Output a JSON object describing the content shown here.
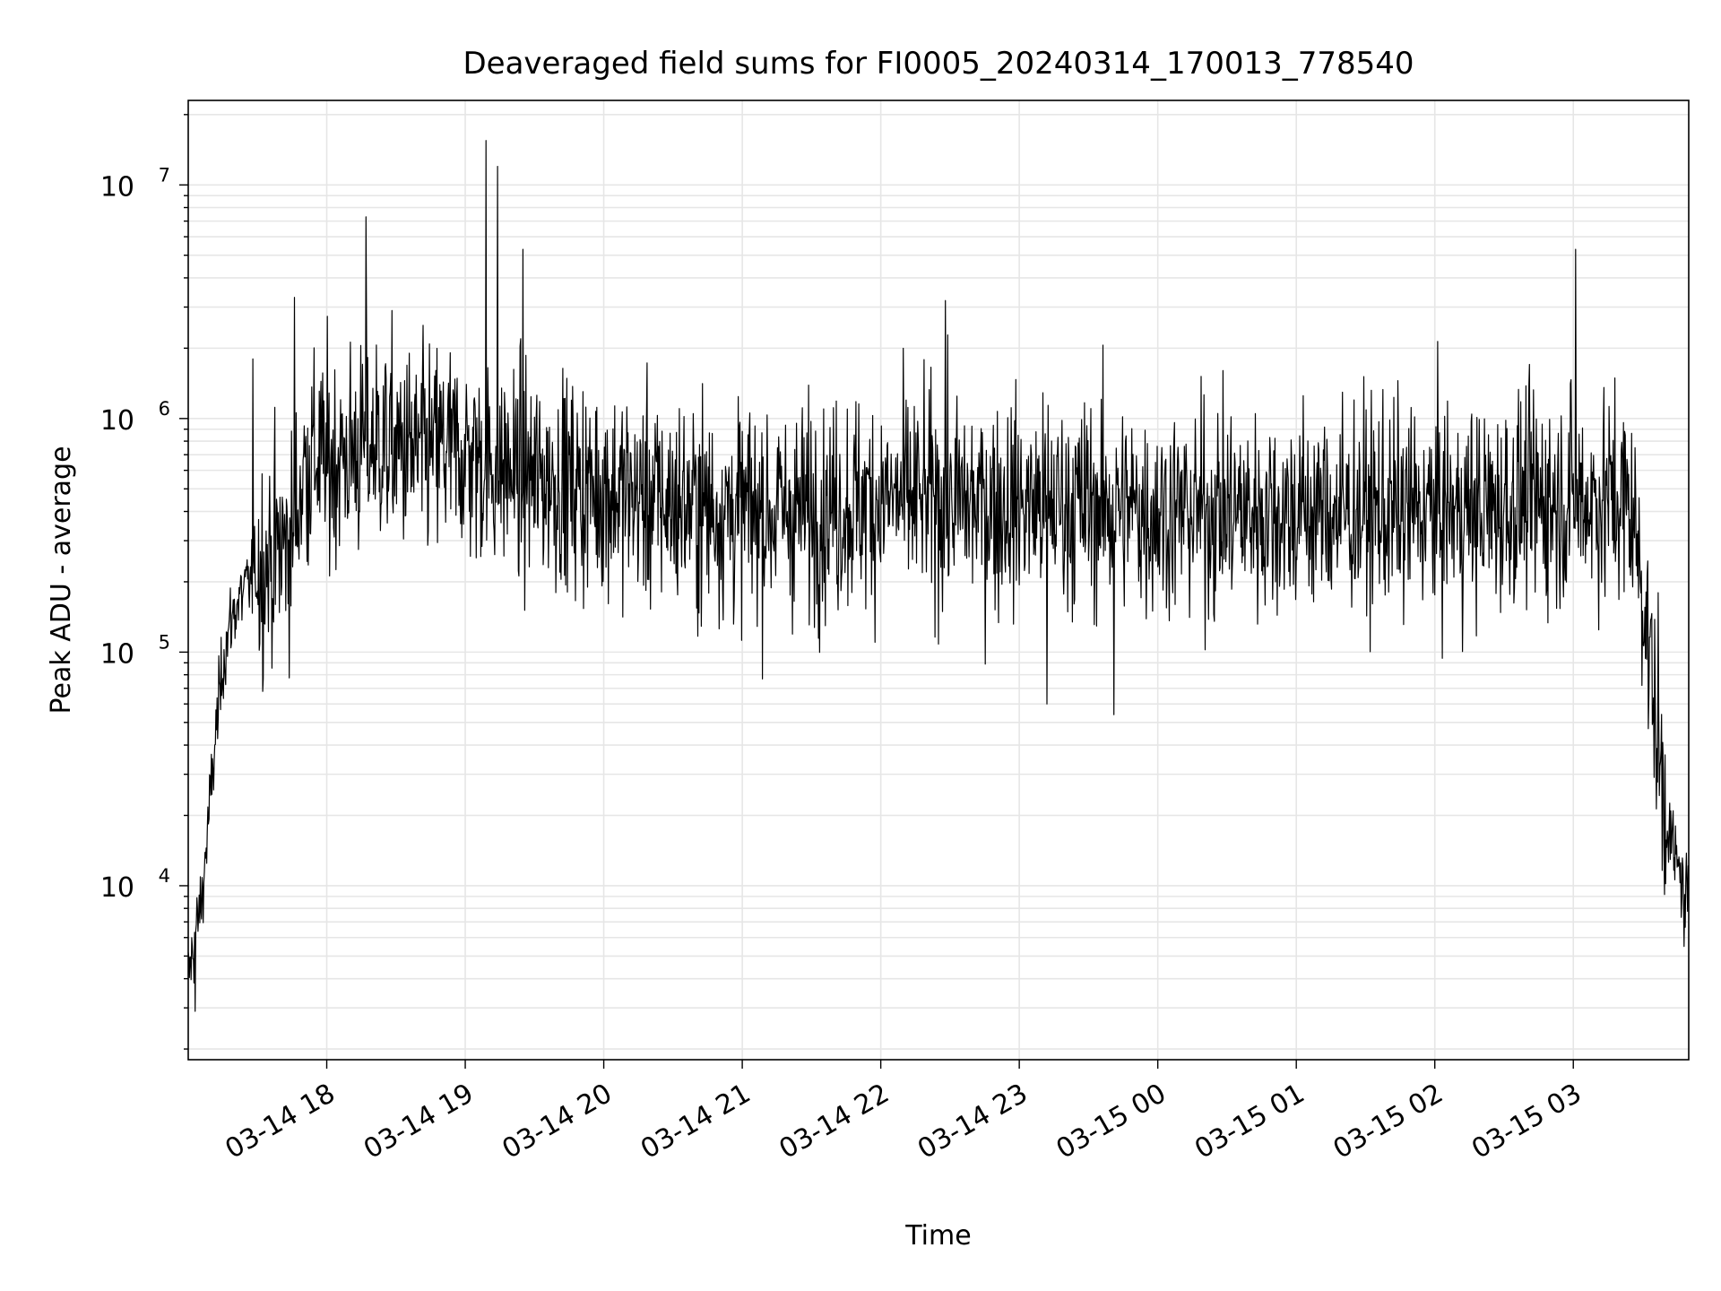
{
  "chart_data": {
    "type": "line",
    "title": "Deaveraged field sums for FI0005_20240314_170013_778540",
    "xlabel": "Time",
    "ylabel": "Peak ADU - average",
    "y_scale": "log",
    "ylim": [
      1800,
      23000000
    ],
    "xlim": [
      "2024-03-14 17:00",
      "2024-03-15 03:50"
    ],
    "x_ticks": [
      {
        "t": "2024-03-14 18:00",
        "label": "03-14 18"
      },
      {
        "t": "2024-03-14 19:00",
        "label": "03-14 19"
      },
      {
        "t": "2024-03-14 20:00",
        "label": "03-14 20"
      },
      {
        "t": "2024-03-14 21:00",
        "label": "03-14 21"
      },
      {
        "t": "2024-03-14 22:00",
        "label": "03-14 22"
      },
      {
        "t": "2024-03-14 23:00",
        "label": "03-14 23"
      },
      {
        "t": "2024-03-15 00:00",
        "label": "03-15 00"
      },
      {
        "t": "2024-03-15 01:00",
        "label": "03-15 01"
      },
      {
        "t": "2024-03-15 02:00",
        "label": "03-15 02"
      },
      {
        "t": "2024-03-15 03:00",
        "label": "03-15 03"
      }
    ],
    "y_ticks": [
      {
        "value": 10000,
        "base": "10",
        "exp": "4"
      },
      {
        "value": 100000,
        "base": "10",
        "exp": "5"
      },
      {
        "value": 1000000,
        "base": "10",
        "exp": "6"
      },
      {
        "value": 10000000,
        "base": "10",
        "exp": "7"
      }
    ],
    "grid": true,
    "grid_minor_y": true,
    "line_color": "#000000",
    "grid_color": "#e6e6e6",
    "series": [
      {
        "x": [
          "2024-03-14 17:00",
          "2024-03-14 17:03",
          "2024-03-14 17:06",
          "2024-03-14 17:09",
          "2024-03-14 17:12",
          "2024-03-14 17:15",
          "2024-03-14 17:18",
          "2024-03-14 17:21",
          "2024-03-14 17:24",
          "2024-03-14 17:27",
          "2024-03-14 17:30",
          "2024-03-14 17:35",
          "2024-03-14 17:40",
          "2024-03-14 17:45",
          "2024-03-14 17:50",
          "2024-03-14 17:55",
          "2024-03-14 18:00",
          "2024-03-14 18:10",
          "2024-03-14 18:20",
          "2024-03-14 18:30",
          "2024-03-14 18:40",
          "2024-03-14 18:50",
          "2024-03-14 19:00",
          "2024-03-14 19:10",
          "2024-03-14 19:20",
          "2024-03-14 19:30",
          "2024-03-14 19:40",
          "2024-03-14 19:50",
          "2024-03-14 20:00",
          "2024-03-14 20:20",
          "2024-03-14 20:40",
          "2024-03-14 21:00",
          "2024-03-14 21:20",
          "2024-03-14 21:40",
          "2024-03-14 22:00",
          "2024-03-14 22:20",
          "2024-03-14 22:40",
          "2024-03-14 23:00",
          "2024-03-14 23:20",
          "2024-03-14 23:40",
          "2024-03-15 00:00",
          "2024-03-15 00:20",
          "2024-03-15 00:40",
          "2024-03-15 01:00",
          "2024-03-15 01:20",
          "2024-03-15 01:40",
          "2024-03-15 02:00",
          "2024-03-15 02:20",
          "2024-03-15 02:40",
          "2024-03-15 03:00",
          "2024-03-15 03:10",
          "2024-03-15 03:20",
          "2024-03-15 03:25",
          "2024-03-15 03:30",
          "2024-03-15 03:35",
          "2024-03-15 03:40",
          "2024-03-15 03:45",
          "2024-03-15 03:50"
        ],
        "y": [
          4000,
          6000,
          9000,
          20000,
          45000,
          90000,
          130000,
          160000,
          180000,
          200000,
          220000,
          250000,
          280000,
          300000,
          600000,
          700000,
          650000,
          700000,
          800000,
          750000,
          700000,
          750000,
          700000,
          650000,
          600000,
          550000,
          550000,
          500000,
          500000,
          450000,
          420000,
          400000,
          400000,
          420000,
          450000,
          450000,
          430000,
          430000,
          430000,
          420000,
          400000,
          400000,
          400000,
          400000,
          400000,
          400000,
          400000,
          400000,
          450000,
          450000,
          450000,
          450000,
          420000,
          200000,
          60000,
          20000,
          12000,
          9000
        ],
        "peaks": [
          {
            "x": "2024-03-14 17:28",
            "y": 1800000
          },
          {
            "x": "2024-03-14 17:46",
            "y": 3300000
          },
          {
            "x": "2024-03-14 18:17",
            "y": 7300000
          },
          {
            "x": "2024-03-14 19:09",
            "y": 15500000
          },
          {
            "x": "2024-03-14 19:14",
            "y": 12000000
          },
          {
            "x": "2024-03-14 19:25",
            "y": 5300000
          },
          {
            "x": "2024-03-14 22:28",
            "y": 3200000
          },
          {
            "x": "2024-03-15 03:01",
            "y": 5300000
          }
        ],
        "troughs": [
          {
            "x": "2024-03-14 17:03",
            "y": 2900
          },
          {
            "x": "2024-03-14 23:12",
            "y": 60000
          },
          {
            "x": "2024-03-14 23:41",
            "y": 54000
          },
          {
            "x": "2024-03-15 03:48",
            "y": 5500
          }
        ]
      }
    ]
  }
}
